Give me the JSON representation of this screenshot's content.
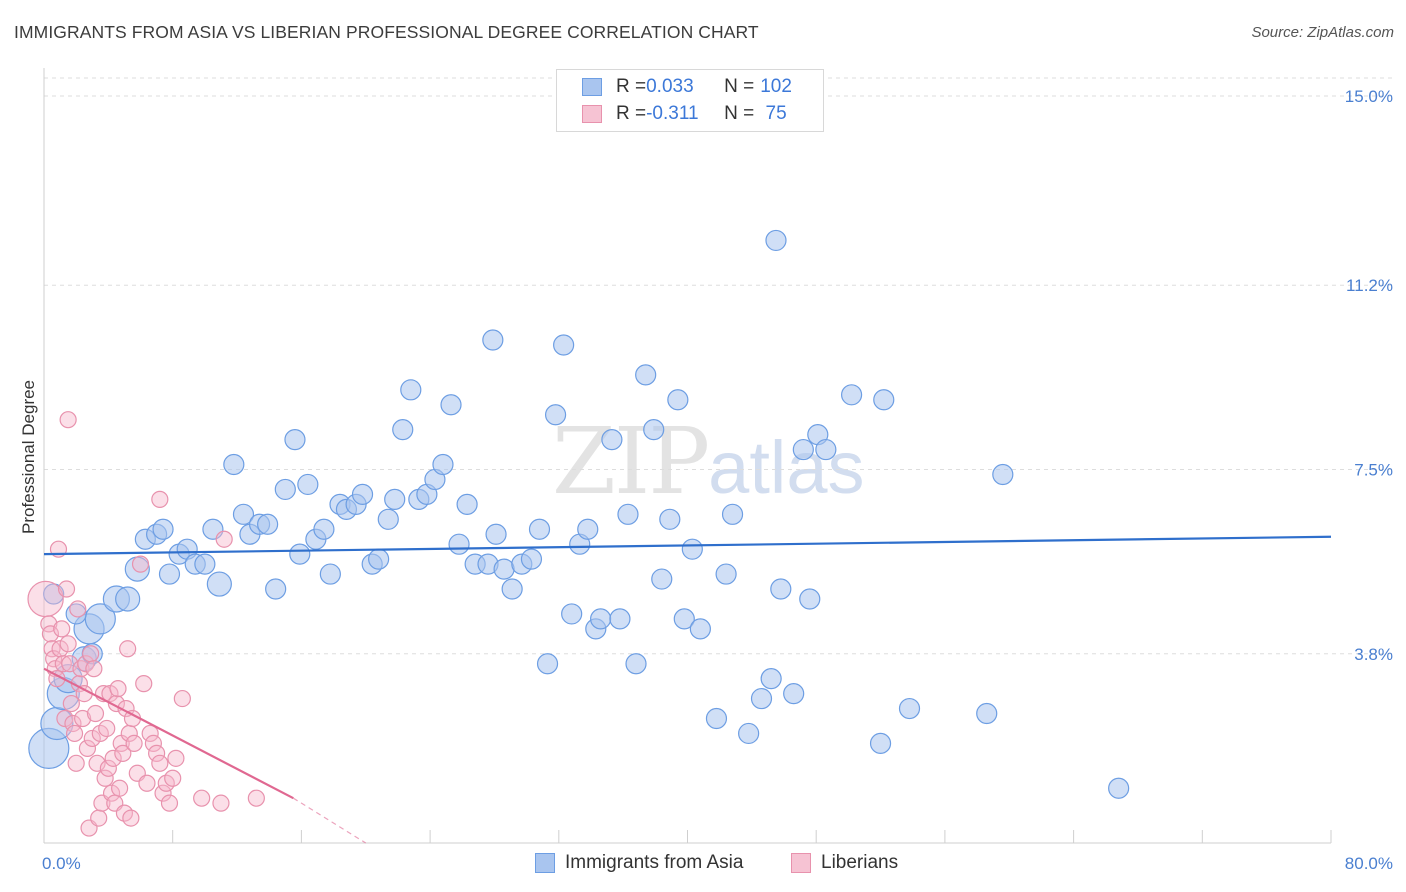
{
  "header": {
    "title": "IMMIGRANTS FROM ASIA VS LIBERIAN PROFESSIONAL DEGREE CORRELATION CHART",
    "source": "Source: ZipAtlas.com"
  },
  "watermark": {
    "zip": "ZIP",
    "atlas": "atlas"
  },
  "legend": {
    "rows": [
      {
        "r_label": "R = ",
        "r_value": "0.033",
        "n_label": "N = ",
        "n_value": "102"
      },
      {
        "r_label": "R = ",
        "r_value": "-0.311",
        "n_label": "N = ",
        "n_value": " 75"
      }
    ]
  },
  "bottom_legend": {
    "series1": "Immigrants from Asia",
    "series2": "Liberians"
  },
  "colors": {
    "blue_fill": "#a9c5ef",
    "blue_stroke": "#6d9ee3",
    "blue_line": "#2f6fcc",
    "pink_fill": "#f6b8cc",
    "pink_stroke": "#e892ad",
    "pink_line": "#e06891",
    "grid": "#dddddd",
    "axis_text": "#4a7fd0"
  },
  "chart_data": {
    "type": "scatter",
    "title": "IMMIGRANTS FROM ASIA VS LIBERIAN PROFESSIONAL DEGREE CORRELATION CHART",
    "xlabel": "",
    "ylabel": "Professional Degree",
    "xlim": [
      0,
      80
    ],
    "ylim": [
      0,
      15
    ],
    "x_tick_labels": [
      "0.0%",
      "80.0%"
    ],
    "y_ticks": [
      3.8,
      7.5,
      11.2,
      15.0
    ],
    "y_tick_labels": [
      "3.8%",
      "7.5%",
      "11.2%",
      "15.0%"
    ],
    "grid": true,
    "legend_position": "top-center",
    "series": [
      {
        "name": "Immigrants from Asia",
        "R": 0.033,
        "N": 102,
        "trend": {
          "x": [
            0,
            80
          ],
          "y": [
            5.8,
            6.15
          ]
        },
        "points": [
          [
            0.3,
            1.9,
            2
          ],
          [
            0.8,
            2.4,
            1.6
          ],
          [
            1.2,
            3.0,
            1.6
          ],
          [
            1.5,
            3.3,
            1.4
          ],
          [
            2.5,
            3.7,
            1.2
          ],
          [
            2.8,
            4.3,
            1.5
          ],
          [
            3.5,
            4.5,
            1.5
          ],
          [
            4.5,
            4.9,
            1.3
          ],
          [
            5.2,
            4.9,
            1.2
          ],
          [
            5.8,
            5.5,
            1.2
          ],
          [
            6.3,
            6.1,
            1.0
          ],
          [
            7.0,
            6.2,
            1.0
          ],
          [
            7.4,
            6.3,
            1.0
          ],
          [
            7.8,
            5.4,
            1.0
          ],
          [
            8.4,
            5.8,
            1.0
          ],
          [
            8.9,
            5.9,
            1.0
          ],
          [
            9.4,
            5.6,
            1.0
          ],
          [
            10.0,
            5.6,
            1.0
          ],
          [
            10.5,
            6.3,
            1.0
          ],
          [
            10.9,
            5.2,
            1.2
          ],
          [
            11.8,
            7.6,
            1.0
          ],
          [
            12.4,
            6.6,
            1.0
          ],
          [
            12.8,
            6.2,
            1.0
          ],
          [
            13.4,
            6.4,
            1.0
          ],
          [
            13.9,
            6.4,
            1.0
          ],
          [
            14.4,
            5.1,
            1.0
          ],
          [
            15.0,
            7.1,
            1.0
          ],
          [
            15.6,
            8.1,
            1.0
          ],
          [
            15.9,
            5.8,
            1.0
          ],
          [
            16.4,
            7.2,
            1.0
          ],
          [
            16.9,
            6.1,
            1.0
          ],
          [
            17.4,
            6.3,
            1.0
          ],
          [
            17.8,
            5.4,
            1.0
          ],
          [
            18.4,
            6.8,
            1.0
          ],
          [
            18.8,
            6.7,
            1.0
          ],
          [
            19.4,
            6.8,
            1.0
          ],
          [
            19.8,
            7.0,
            1.0
          ],
          [
            20.4,
            5.6,
            1.0
          ],
          [
            20.8,
            5.7,
            1.0
          ],
          [
            21.4,
            6.5,
            1.0
          ],
          [
            21.8,
            6.9,
            1.0
          ],
          [
            22.3,
            8.3,
            1.0
          ],
          [
            22.8,
            9.1,
            1.0
          ],
          [
            23.3,
            6.9,
            1.0
          ],
          [
            23.8,
            7.0,
            1.0
          ],
          [
            24.3,
            7.3,
            1.0
          ],
          [
            24.8,
            7.6,
            1.0
          ],
          [
            25.3,
            8.8,
            1.0
          ],
          [
            25.8,
            6.0,
            1.0
          ],
          [
            26.3,
            6.8,
            1.0
          ],
          [
            26.8,
            5.6,
            1.0
          ],
          [
            27.6,
            5.6,
            1.0
          ],
          [
            28.1,
            6.2,
            1.0
          ],
          [
            28.6,
            5.5,
            1.0
          ],
          [
            27.9,
            10.1,
            1.0
          ],
          [
            29.1,
            5.1,
            1.0
          ],
          [
            29.7,
            5.6,
            1.0
          ],
          [
            30.3,
            5.7,
            1.0
          ],
          [
            30.8,
            6.3,
            1.0
          ],
          [
            31.3,
            3.6,
            1.0
          ],
          [
            31.8,
            8.6,
            1.0
          ],
          [
            32.3,
            10.0,
            1.0
          ],
          [
            32.8,
            4.6,
            1.0
          ],
          [
            33.3,
            6.0,
            1.0
          ],
          [
            33.8,
            6.3,
            1.0
          ],
          [
            34.3,
            4.3,
            1.0
          ],
          [
            34.6,
            4.5,
            1.0
          ],
          [
            35.3,
            8.1,
            1.0
          ],
          [
            35.8,
            4.5,
            1.0
          ],
          [
            36.3,
            6.6,
            1.0
          ],
          [
            36.8,
            3.6,
            1.0
          ],
          [
            37.4,
            9.4,
            1.0
          ],
          [
            37.9,
            8.3,
            1.0
          ],
          [
            38.4,
            5.3,
            1.0
          ],
          [
            38.9,
            6.5,
            1.0
          ],
          [
            39.4,
            8.9,
            1.0
          ],
          [
            39.8,
            4.5,
            1.0
          ],
          [
            40.3,
            5.9,
            1.0
          ],
          [
            40.8,
            4.3,
            1.0
          ],
          [
            41.8,
            2.5,
            1.0
          ],
          [
            42.4,
            5.4,
            1.0
          ],
          [
            42.8,
            6.6,
            1.0
          ],
          [
            43.8,
            2.2,
            1.0
          ],
          [
            44.6,
            2.9,
            1.0
          ],
          [
            45.2,
            3.3,
            1.0
          ],
          [
            45.5,
            12.1,
            1.0
          ],
          [
            45.8,
            5.1,
            1.0
          ],
          [
            46.6,
            3.0,
            1.0
          ],
          [
            47.2,
            7.9,
            1.0
          ],
          [
            47.6,
            4.9,
            1.0
          ],
          [
            48.1,
            8.2,
            1.0
          ],
          [
            48.6,
            7.9,
            1.0
          ],
          [
            50.2,
            9.0,
            1.0
          ],
          [
            52.0,
            2.0,
            1.0
          ],
          [
            52.2,
            8.9,
            1.0
          ],
          [
            53.8,
            2.7,
            1.0
          ],
          [
            58.6,
            2.6,
            1.0
          ],
          [
            59.6,
            7.4,
            1.0
          ],
          [
            66.8,
            1.1,
            1.0
          ],
          [
            0.6,
            5.0,
            1.0
          ],
          [
            2.0,
            4.6,
            1.0
          ],
          [
            3.0,
            3.8,
            1.0
          ]
        ]
      },
      {
        "name": "Liberians",
        "R": -0.311,
        "N": 75,
        "trend": {
          "x": [
            0,
            15.5
          ],
          "y": [
            3.5,
            0.9
          ]
        },
        "trend_dashed": {
          "x": [
            15.5,
            20
          ],
          "y": [
            0.9,
            0.0
          ]
        },
        "points": [
          [
            0.1,
            4.9,
            2.2
          ],
          [
            0.3,
            4.4,
            1.0
          ],
          [
            0.4,
            4.2,
            1.0
          ],
          [
            0.5,
            3.9,
            1.0
          ],
          [
            0.6,
            3.7,
            1.0
          ],
          [
            0.7,
            3.5,
            1.0
          ],
          [
            0.8,
            3.3,
            1.0
          ],
          [
            0.9,
            5.9,
            1.0
          ],
          [
            1.0,
            3.9,
            1.0
          ],
          [
            1.1,
            4.3,
            1.0
          ],
          [
            1.2,
            3.6,
            1.0
          ],
          [
            1.3,
            2.5,
            1.0
          ],
          [
            1.4,
            5.1,
            1.0
          ],
          [
            1.5,
            4.0,
            1.0
          ],
          [
            1.6,
            3.6,
            1.0
          ],
          [
            1.7,
            2.8,
            1.0
          ],
          [
            1.8,
            2.4,
            1.0
          ],
          [
            1.9,
            2.2,
            1.0
          ],
          [
            2.0,
            1.6,
            1.0
          ],
          [
            1.5,
            8.5,
            1.0
          ],
          [
            2.1,
            4.7,
            1.0
          ],
          [
            2.2,
            3.2,
            1.0
          ],
          [
            2.3,
            3.5,
            1.0
          ],
          [
            2.4,
            2.5,
            1.0
          ],
          [
            2.5,
            3.0,
            1.0
          ],
          [
            2.6,
            3.6,
            1.0
          ],
          [
            2.7,
            1.9,
            1.0
          ],
          [
            2.8,
            0.3,
            1.0
          ],
          [
            2.9,
            3.8,
            1.0
          ],
          [
            3.0,
            2.1,
            1.0
          ],
          [
            3.1,
            3.5,
            1.0
          ],
          [
            3.2,
            2.6,
            1.0
          ],
          [
            3.3,
            1.6,
            1.0
          ],
          [
            3.4,
            0.5,
            1.0
          ],
          [
            3.5,
            2.2,
            1.0
          ],
          [
            3.6,
            0.8,
            1.0
          ],
          [
            3.7,
            3.0,
            1.0
          ],
          [
            3.8,
            1.3,
            1.0
          ],
          [
            3.9,
            2.3,
            1.0
          ],
          [
            4.0,
            1.5,
            1.0
          ],
          [
            4.1,
            3.0,
            1.0
          ],
          [
            4.2,
            1.0,
            1.0
          ],
          [
            4.3,
            1.7,
            1.0
          ],
          [
            4.4,
            0.8,
            1.0
          ],
          [
            4.5,
            2.8,
            1.0
          ],
          [
            4.6,
            3.1,
            1.0
          ],
          [
            4.7,
            1.1,
            1.0
          ],
          [
            4.8,
            2.0,
            1.0
          ],
          [
            4.9,
            1.8,
            1.0
          ],
          [
            5.0,
            0.6,
            1.0
          ],
          [
            5.1,
            2.7,
            1.0
          ],
          [
            5.2,
            3.9,
            1.0
          ],
          [
            5.3,
            2.2,
            1.0
          ],
          [
            5.4,
            0.5,
            1.0
          ],
          [
            5.5,
            2.5,
            1.0
          ],
          [
            5.6,
            2.0,
            1.0
          ],
          [
            5.8,
            1.4,
            1.0
          ],
          [
            6.0,
            5.6,
            1.0
          ],
          [
            6.2,
            3.2,
            1.0
          ],
          [
            6.4,
            1.2,
            1.0
          ],
          [
            6.6,
            2.2,
            1.0
          ],
          [
            6.8,
            2.0,
            1.0
          ],
          [
            7.0,
            1.8,
            1.0
          ],
          [
            7.2,
            1.6,
            1.0
          ],
          [
            7.4,
            1.0,
            1.0
          ],
          [
            7.6,
            1.2,
            1.0
          ],
          [
            7.2,
            6.9,
            1.0
          ],
          [
            7.8,
            0.8,
            1.0
          ],
          [
            8.0,
            1.3,
            1.0
          ],
          [
            8.2,
            1.7,
            1.0
          ],
          [
            8.6,
            2.9,
            1.0
          ],
          [
            9.8,
            0.9,
            1.0
          ],
          [
            11.0,
            0.8,
            1.0
          ],
          [
            11.2,
            6.1,
            1.0
          ],
          [
            13.2,
            0.9,
            1.0
          ]
        ]
      }
    ]
  }
}
